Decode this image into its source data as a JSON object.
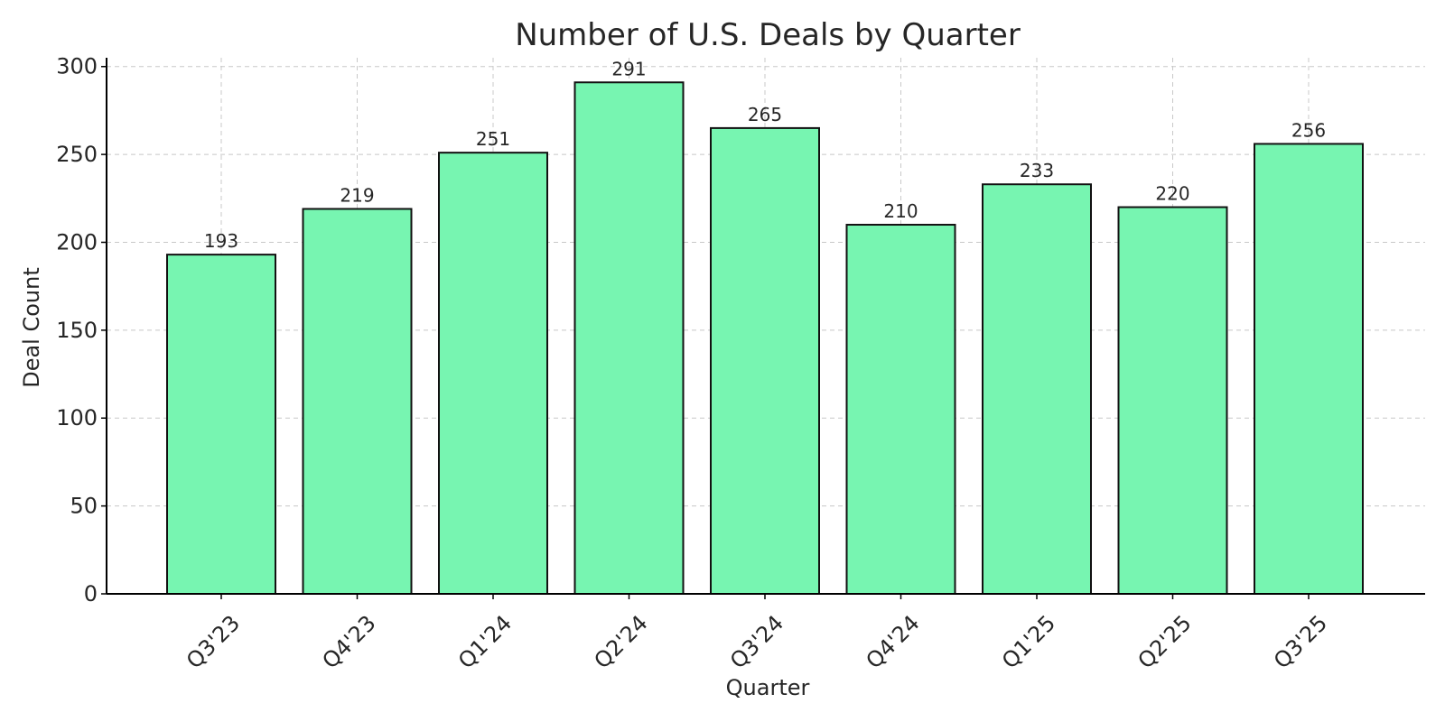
{
  "chart_data": {
    "type": "bar",
    "title": "Number of U.S. Deals by Quarter",
    "xlabel": "Quarter",
    "ylabel": "Deal Count",
    "categories": [
      "Q3'23",
      "Q4'23",
      "Q1'24",
      "Q2'24",
      "Q3'24",
      "Q4'24",
      "Q1'25",
      "Q2'25",
      "Q3'25"
    ],
    "values": [
      193,
      219,
      251,
      291,
      265,
      210,
      233,
      220,
      256
    ],
    "ylim": [
      0,
      305
    ],
    "yticks": [
      0,
      50,
      100,
      150,
      200,
      250,
      300
    ],
    "grid": true,
    "bar_color": "#77f5b1",
    "edge_color": "#111111",
    "data_labels": true,
    "xtick_rotation_deg": 45
  }
}
